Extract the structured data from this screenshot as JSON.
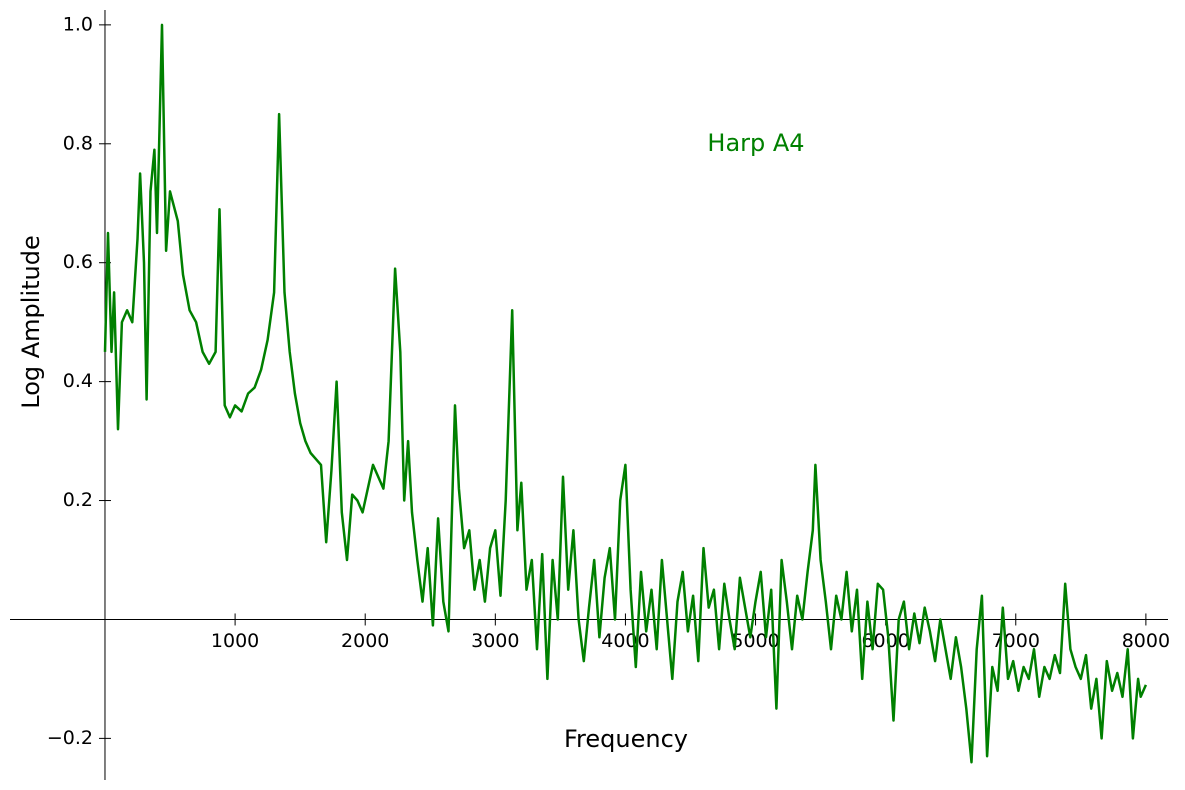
{
  "chart_data": {
    "type": "line",
    "annotation": "Harp A4",
    "xlabel": "Frequency",
    "ylabel": "Log Amplitude",
    "xlim": [
      -730,
      8170
    ],
    "ylim": [
      -0.27,
      1.025
    ],
    "xticks": [
      1000,
      2000,
      3000,
      4000,
      5000,
      6000,
      7000,
      8000
    ],
    "yticks": [
      {
        "value": -0.2,
        "label": "−0.2"
      },
      0.2,
      0.4,
      0.6,
      0.8,
      {
        "value": 1,
        "label": "1.0"
      }
    ],
    "grid": false,
    "series": [
      {
        "color": "#008000",
        "x": [
          0,
          23,
          50,
          70,
          100,
          130,
          170,
          210,
          250,
          270,
          300,
          320,
          350,
          380,
          400,
          438,
          470,
          500,
          560,
          600,
          650,
          700,
          750,
          800,
          850,
          880,
          920,
          960,
          1000,
          1050,
          1100,
          1150,
          1200,
          1250,
          1300,
          1338,
          1380,
          1420,
          1460,
          1500,
          1540,
          1580,
          1620,
          1660,
          1700,
          1740,
          1780,
          1820,
          1860,
          1900,
          1940,
          1980,
          2020,
          2060,
          2100,
          2140,
          2180,
          2230,
          2270,
          2300,
          2330,
          2360,
          2400,
          2440,
          2480,
          2520,
          2560,
          2600,
          2640,
          2690,
          2720,
          2760,
          2800,
          2840,
          2880,
          2920,
          2960,
          3000,
          3040,
          3080,
          3130,
          3170,
          3200,
          3240,
          3280,
          3320,
          3360,
          3400,
          3440,
          3480,
          3520,
          3560,
          3600,
          3640,
          3680,
          3720,
          3760,
          3800,
          3840,
          3880,
          3920,
          3960,
          4000,
          4040,
          4080,
          4120,
          4160,
          4200,
          4240,
          4280,
          4320,
          4360,
          4400,
          4440,
          4480,
          4520,
          4560,
          4600,
          4640,
          4680,
          4720,
          4760,
          4800,
          4840,
          4880,
          4920,
          4960,
          5000,
          5040,
          5080,
          5120,
          5160,
          5200,
          5240,
          5280,
          5320,
          5360,
          5400,
          5440,
          5460,
          5500,
          5540,
          5580,
          5620,
          5660,
          5700,
          5740,
          5780,
          5820,
          5860,
          5900,
          5940,
          5980,
          6020,
          6060,
          6100,
          6140,
          6180,
          6220,
          6260,
          6300,
          6340,
          6380,
          6420,
          6460,
          6500,
          6540,
          6580,
          6620,
          6660,
          6700,
          6740,
          6780,
          6820,
          6860,
          6900,
          6940,
          6980,
          7020,
          7060,
          7100,
          7140,
          7180,
          7220,
          7260,
          7300,
          7340,
          7380,
          7420,
          7460,
          7500,
          7540,
          7580,
          7620,
          7660,
          7700,
          7740,
          7780,
          7820,
          7860,
          7900,
          7940,
          7960,
          8000
        ],
        "values": [
          0.45,
          0.65,
          0.45,
          0.55,
          0.32,
          0.5,
          0.52,
          0.5,
          0.64,
          0.75,
          0.6,
          0.37,
          0.72,
          0.79,
          0.65,
          1,
          0.62,
          0.72,
          0.67,
          0.58,
          0.52,
          0.5,
          0.45,
          0.43,
          0.45,
          0.69,
          0.36,
          0.34,
          0.36,
          0.35,
          0.38,
          0.39,
          0.42,
          0.47,
          0.55,
          0.85,
          0.55,
          0.45,
          0.38,
          0.33,
          0.3,
          0.28,
          0.27,
          0.26,
          0.13,
          0.25,
          0.4,
          0.18,
          0.1,
          0.21,
          0.2,
          0.18,
          0.22,
          0.26,
          0.24,
          0.22,
          0.3,
          0.59,
          0.45,
          0.2,
          0.3,
          0.18,
          0.1,
          0.03,
          0.12,
          -0.01,
          0.17,
          0.03,
          -0.02,
          0.36,
          0.22,
          0.12,
          0.15,
          0.05,
          0.1,
          0.03,
          0.12,
          0.15,
          0.04,
          0.2,
          0.52,
          0.15,
          0.23,
          0.05,
          0.1,
          -0.05,
          0.11,
          -0.1,
          0.1,
          0,
          0.24,
          0.05,
          0.15,
          0,
          -0.07,
          0.02,
          0.1,
          -0.03,
          0.07,
          0.12,
          0,
          0.2,
          0.26,
          0.05,
          -0.08,
          0.08,
          -0.02,
          0.05,
          -0.05,
          0.1,
          0,
          -0.1,
          0.03,
          0.08,
          -0.02,
          0.04,
          -0.07,
          0.12,
          0.02,
          0.05,
          -0.05,
          0.06,
          0,
          -0.05,
          0.07,
          0.02,
          -0.03,
          0.03,
          0.08,
          -0.03,
          0.05,
          -0.15,
          0.1,
          0.03,
          -0.05,
          0.04,
          0,
          0.08,
          0.15,
          0.26,
          0.1,
          0.03,
          -0.05,
          0.04,
          0,
          0.08,
          -0.02,
          0.05,
          -0.1,
          0.03,
          -0.05,
          0.06,
          0.05,
          -0.03,
          -0.17,
          0,
          0.03,
          -0.05,
          0.01,
          -0.04,
          0.02,
          -0.02,
          -0.07,
          0,
          -0.05,
          -0.1,
          -0.03,
          -0.08,
          -0.15,
          -0.24,
          -0.05,
          0.04,
          -0.23,
          -0.08,
          -0.12,
          0.02,
          -0.1,
          -0.07,
          -0.12,
          -0.08,
          -0.1,
          -0.05,
          -0.13,
          -0.08,
          -0.1,
          -0.06,
          -0.09,
          0.06,
          -0.05,
          -0.08,
          -0.1,
          -0.06,
          -0.15,
          -0.1,
          -0.2,
          -0.07,
          -0.12,
          -0.09,
          -0.13,
          -0.05,
          -0.2,
          -0.1,
          -0.13,
          -0.11
        ]
      }
    ]
  }
}
